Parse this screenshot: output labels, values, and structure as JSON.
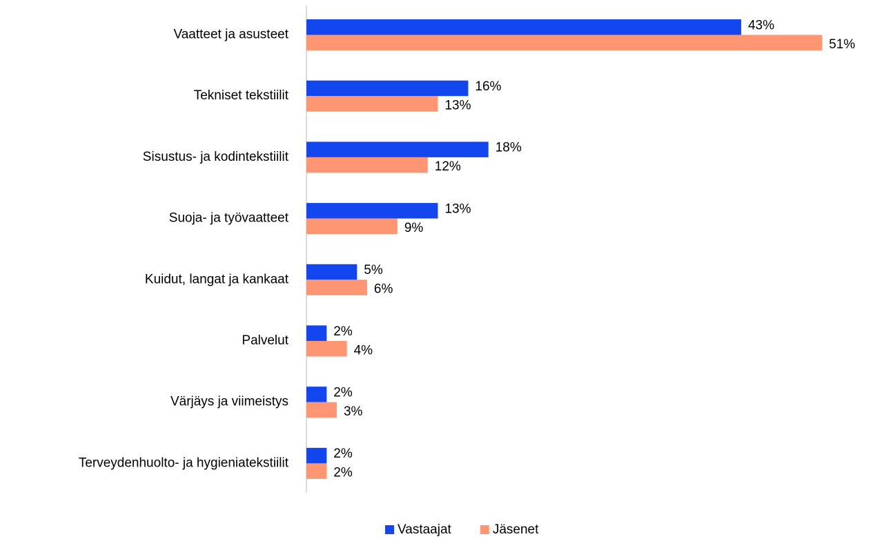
{
  "chart_data": {
    "type": "bar",
    "orientation": "horizontal",
    "categories": [
      "Vaatteet ja asusteet",
      "Tekniset tekstiilit",
      "Sisustus- ja kodintekstiilit",
      "Suoja- ja työvaatteet",
      "Kuidut, langat ja kankaat",
      "Palvelut",
      "Värjäys ja viimeistys",
      "Terveydenhuolto- ja hygieniatekstiilit"
    ],
    "series": [
      {
        "name": "Vastaajat",
        "color": "#1446f0",
        "values": [
          43,
          16,
          18,
          13,
          5,
          2,
          2,
          2
        ],
        "value_labels": [
          "43%",
          "16%",
          "18%",
          "13%",
          "5%",
          "2%",
          "2%",
          "2%"
        ]
      },
      {
        "name": "Jäsenet",
        "color": "#ff9673",
        "values": [
          51,
          13,
          12,
          9,
          6,
          4,
          3,
          2
        ],
        "value_labels": [
          "51%",
          "13%",
          "12%",
          "9%",
          "6%",
          "4%",
          "3%",
          "2%"
        ]
      }
    ],
    "legend": "bottom"
  }
}
